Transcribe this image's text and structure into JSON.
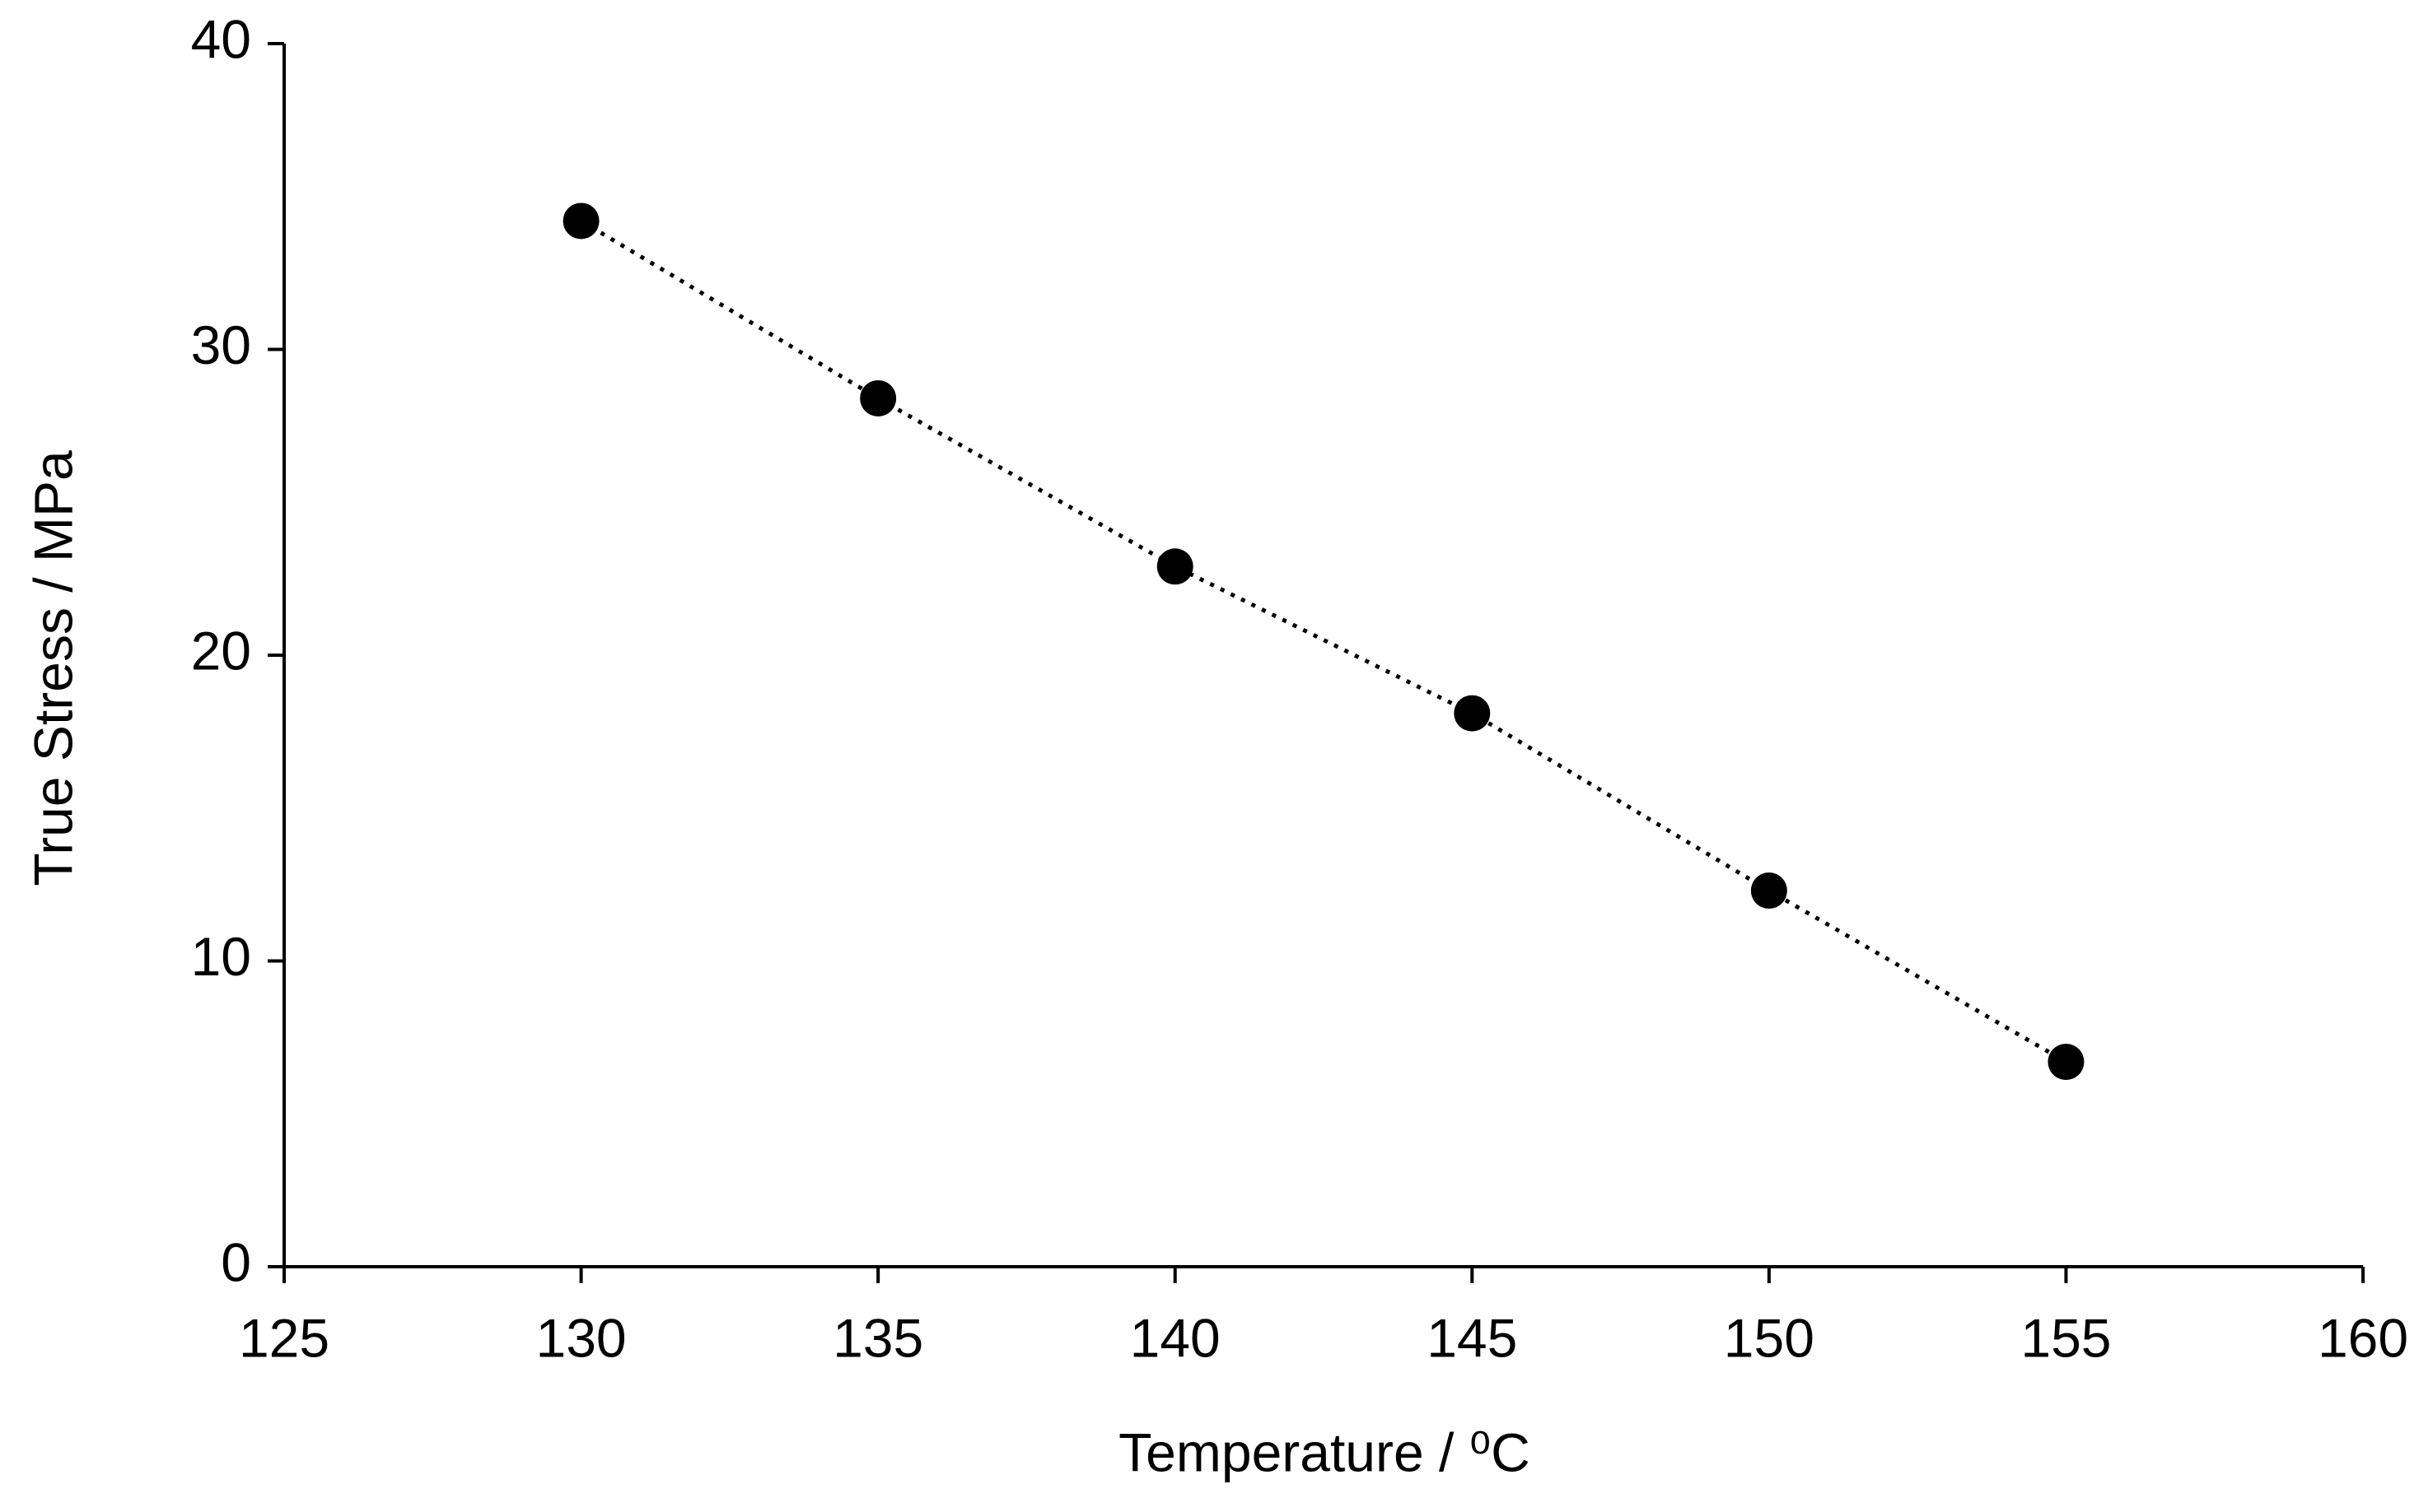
{
  "chart_data": {
    "type": "scatter",
    "xlabel": "Temperature / ⁰C",
    "ylabel": "True Stress / MPa",
    "x": [
      130,
      135,
      140,
      145,
      150,
      155
    ],
    "series": [
      {
        "color": "#000000",
        "values": [
          34.2,
          28.4,
          22.9,
          18.1,
          12.3,
          6.7
        ]
      }
    ],
    "line_style": "dotted",
    "xlim": [
      125,
      160
    ],
    "xticks": [
      125,
      130,
      135,
      140,
      145,
      150,
      155,
      160
    ],
    "ylim": [
      0,
      40
    ],
    "yticks": [
      0,
      10,
      20,
      30,
      40
    ]
  }
}
